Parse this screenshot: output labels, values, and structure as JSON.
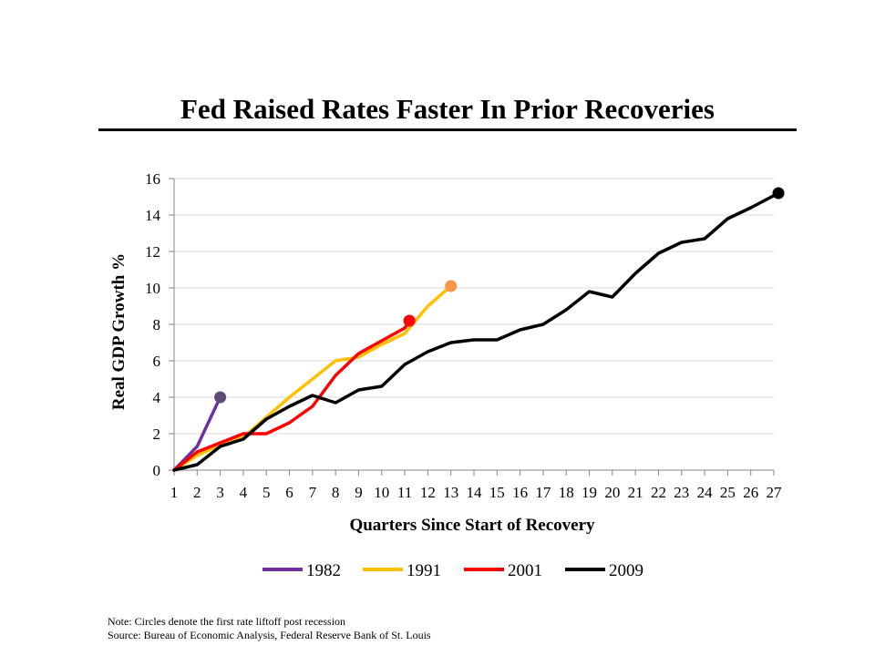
{
  "slide": {
    "title": "Fed Raised Rates Faster In Prior Recoveries",
    "note": "Note: Circles denote the first rate liftoff post recession",
    "source": "Source: Bureau of Economic Analysis, Federal Reserve Bank of St. Louis"
  },
  "chart_data": {
    "type": "line",
    "title": "",
    "xlabel": "Quarters Since Start of Recovery",
    "ylabel": "Real GDP Growth %",
    "xlim": [
      1,
      27
    ],
    "ylim": [
      0,
      16
    ],
    "x_ticks": [
      1,
      2,
      3,
      4,
      5,
      6,
      7,
      8,
      9,
      10,
      11,
      12,
      13,
      14,
      15,
      16,
      17,
      18,
      19,
      20,
      21,
      22,
      23,
      24,
      25,
      26,
      27
    ],
    "y_ticks": [
      0,
      2,
      4,
      6,
      8,
      10,
      12,
      14,
      16
    ],
    "grid": "horizontal",
    "legend_position": "bottom",
    "series": [
      {
        "name": "1982",
        "color": "#7030a0",
        "marker_color": "#604a7b",
        "x": [
          1,
          2,
          3
        ],
        "values": [
          0,
          1.3,
          4.0
        ],
        "liftoff": {
          "x": 3,
          "y": 4.0
        }
      },
      {
        "name": "1991",
        "color": "#ffc000",
        "marker_color": "#f79646",
        "x": [
          1,
          2,
          3,
          4,
          5,
          6,
          7,
          8,
          9,
          10,
          11,
          12,
          13
        ],
        "values": [
          0,
          0.8,
          1.4,
          1.8,
          2.9,
          4.0,
          5.0,
          6.0,
          6.2,
          6.9,
          7.5,
          9.0,
          10.1
        ],
        "liftoff": {
          "x": 13,
          "y": 10.1
        }
      },
      {
        "name": "2001",
        "color": "#ff0000",
        "marker_color": "#ff0000",
        "x": [
          1,
          2,
          3,
          4,
          5,
          6,
          7,
          8,
          9,
          10,
          11,
          11.2
        ],
        "values": [
          0,
          1.0,
          1.5,
          2.0,
          2.0,
          2.6,
          3.5,
          5.2,
          6.4,
          7.1,
          7.8,
          8.2
        ],
        "liftoff": {
          "x": 11.2,
          "y": 8.2
        }
      },
      {
        "name": "2009",
        "color": "#000000",
        "marker_color": "#000000",
        "x": [
          1,
          2,
          3,
          4,
          5,
          6,
          7,
          8,
          9,
          10,
          11,
          12,
          13,
          14,
          15,
          16,
          17,
          18,
          19,
          20,
          21,
          22,
          23,
          24,
          25,
          26,
          27.2
        ],
        "values": [
          0,
          0.3,
          1.3,
          1.7,
          2.8,
          3.5,
          4.1,
          3.7,
          4.4,
          4.6,
          5.8,
          6.5,
          7.0,
          7.15,
          7.15,
          7.7,
          8.0,
          8.8,
          9.8,
          9.5,
          10.8,
          11.9,
          12.5,
          12.7,
          13.8,
          14.4,
          15.2
        ],
        "liftoff": {
          "x": 27.2,
          "y": 15.2
        }
      }
    ]
  }
}
